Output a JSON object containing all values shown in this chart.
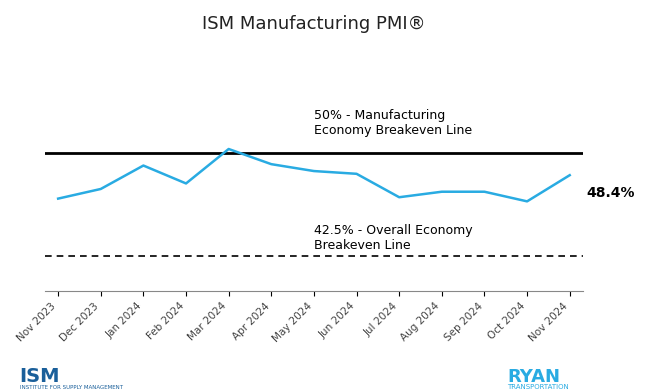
{
  "title": "ISM Manufacturing PMI®",
  "months": [
    "Nov 2023",
    "Dec 2023",
    "Jan 2024",
    "Feb 2024",
    "Mar 2024",
    "Apr 2024",
    "May 2024",
    "Jun 2024",
    "Jul 2024",
    "Aug 2024",
    "Sep 2024",
    "Oct 2024",
    "Nov 2024"
  ],
  "values": [
    46.7,
    47.4,
    49.1,
    47.8,
    50.3,
    49.2,
    48.7,
    48.5,
    46.8,
    47.2,
    47.2,
    46.5,
    48.4
  ],
  "line_color": "#29ABE2",
  "line_width": 1.8,
  "breakeven_50": 50.0,
  "breakeven_42_5": 42.5,
  "label_50": "50% - Manufacturing\nEconomy Breakeven Line",
  "label_42_5": "42.5% - Overall Economy\nBreakeven Line",
  "last_value_label": "48.4%",
  "ylim_min": 40,
  "ylim_max": 58,
  "bg_color": "#ffffff",
  "annotation_color": "#000000",
  "annotation_fontsize": 9,
  "title_fontsize": 13
}
